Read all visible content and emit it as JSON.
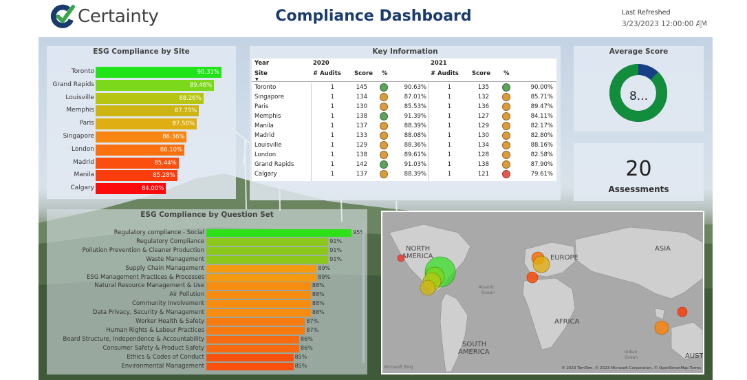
{
  "header": {
    "logo_text": "Certainty",
    "title": "Compliance Dashboard",
    "refresh_label": "Last Refreshed",
    "refresh_value": "3/23/2023 12:00:00 AM"
  },
  "site_chart": {
    "title": "ESG Compliance by Site",
    "type": "bar",
    "sites": [
      {
        "name": "Toronto",
        "value": 90.31,
        "label": "90.31%",
        "color": "#21e319"
      },
      {
        "name": "Grand Rapids",
        "value": 89.46,
        "label": "89.46%",
        "color": "#7bd81a"
      },
      {
        "name": "Louisville",
        "value": 88.26,
        "label": "88.26%",
        "color": "#b6c512"
      },
      {
        "name": "Memphis",
        "value": 87.75,
        "label": "87.75%",
        "color": "#ccb512"
      },
      {
        "name": "Paris",
        "value": 87.5,
        "label": "87.50%",
        "color": "#deae12"
      },
      {
        "name": "Singapore",
        "value": 86.36,
        "label": "86.36%",
        "color": "#f78511"
      },
      {
        "name": "London",
        "value": 86.1,
        "label": "86.10%",
        "color": "#fa700f"
      },
      {
        "name": "Madrid",
        "value": 85.44,
        "label": "85.44%",
        "color": "#fa4f0e"
      },
      {
        "name": "Manila",
        "value": 85.28,
        "label": "85.28%",
        "color": "#fb3d0d"
      },
      {
        "name": "Calgary",
        "value": 84.0,
        "label": "84.00%",
        "color": "#fb0b0b"
      }
    ]
  },
  "key_info": {
    "title": "Key Information",
    "year_label": "Year",
    "site_label": "Site",
    "years": [
      "2020",
      "2021"
    ],
    "columns": [
      "# Audits",
      "Score",
      "%"
    ],
    "rows": [
      {
        "site": "Toronto",
        "a1": "1",
        "s1": "145",
        "c1": "#5ca45c",
        "p1": "90.63%",
        "a2": "1",
        "s2": "135",
        "c2": "#5ca45c",
        "p2": "90.00%"
      },
      {
        "site": "Singapore",
        "a1": "1",
        "s1": "134",
        "c1": "#de9b3a",
        "p1": "87.01%",
        "a2": "1",
        "s2": "132",
        "c2": "#de9b3a",
        "p2": "85.71%"
      },
      {
        "site": "Paris",
        "a1": "1",
        "s1": "130",
        "c1": "#de9b3a",
        "p1": "85.53%",
        "a2": "1",
        "s2": "136",
        "c2": "#de9b3a",
        "p2": "89.47%"
      },
      {
        "site": "Memphis",
        "a1": "1",
        "s1": "138",
        "c1": "#5ca45c",
        "p1": "91.39%",
        "a2": "1",
        "s2": "127",
        "c2": "#de9b3a",
        "p2": "84.11%"
      },
      {
        "site": "Manila",
        "a1": "1",
        "s1": "137",
        "c1": "#de9b3a",
        "p1": "88.39%",
        "a2": "1",
        "s2": "129",
        "c2": "#de9b3a",
        "p2": "82.17%"
      },
      {
        "site": "Madrid",
        "a1": "1",
        "s1": "133",
        "c1": "#de9b3a",
        "p1": "88.08%",
        "a2": "1",
        "s2": "130",
        "c2": "#de9b3a",
        "p2": "82.80%"
      },
      {
        "site": "Louisville",
        "a1": "1",
        "s1": "129",
        "c1": "#de9b3a",
        "p1": "88.36%",
        "a2": "1",
        "s2": "134",
        "c2": "#de9b3a",
        "p2": "88.16%"
      },
      {
        "site": "London",
        "a1": "1",
        "s1": "138",
        "c1": "#de9b3a",
        "p1": "89.61%",
        "a2": "1",
        "s2": "128",
        "c2": "#de9b3a",
        "p2": "82.58%"
      },
      {
        "site": "Grand Rapids",
        "a1": "1",
        "s1": "142",
        "c1": "#5ca45c",
        "p1": "91.03%",
        "a2": "1",
        "s2": "138",
        "c2": "#de9b3a",
        "p2": "87.90%"
      },
      {
        "site": "Calgary",
        "a1": "1",
        "s1": "137",
        "c1": "#de9b3a",
        "p1": "88.39%",
        "a2": "1",
        "s2": "121",
        "c2": "#e35a4f",
        "p2": "79.61%"
      }
    ]
  },
  "average_score": {
    "title": "Average Score",
    "display": "8...",
    "fraction": 0.88,
    "fill_color": "#118d3c",
    "rest_color": "#183f85"
  },
  "assessments": {
    "value": "20",
    "label": "Assessments"
  },
  "question_chart": {
    "title": "ESG Compliance by Question Set",
    "type": "bar",
    "items": [
      {
        "name": "Regulatory compliance - Social",
        "value": 95,
        "label": "95%",
        "color": "#2ee01a"
      },
      {
        "name": "Regulatory Compliance",
        "value": 91,
        "label": "91%",
        "color": "#8bc81b"
      },
      {
        "name": "Pollution Prevention & Cleaner Production",
        "value": 91,
        "label": "91%",
        "color": "#8bc81b"
      },
      {
        "name": "Waste Management",
        "value": 91,
        "label": "91%",
        "color": "#8bc81b"
      },
      {
        "name": "Supply Chain Management",
        "value": 89,
        "label": "89%",
        "color": "#f49a11"
      },
      {
        "name": "ESG Management Practices & Processes",
        "value": 89,
        "label": "89%",
        "color": "#f49a11"
      },
      {
        "name": "Natural Resource Management & Use",
        "value": 88,
        "label": "88%",
        "color": "#f68c10"
      },
      {
        "name": "Air Pollution",
        "value": 88,
        "label": "88%",
        "color": "#f68c10"
      },
      {
        "name": "Community Involvement",
        "value": 88,
        "label": "88%",
        "color": "#f68c10"
      },
      {
        "name": "Data Privacy, Security & Management",
        "value": 88,
        "label": "88%",
        "color": "#f68c10"
      },
      {
        "name": "Worker Health & Safety",
        "value": 87,
        "label": "87%",
        "color": "#f77a10"
      },
      {
        "name": "Human Rights & Labour Practices",
        "value": 87,
        "label": "87%",
        "color": "#f77a10"
      },
      {
        "name": "Board Structure, Independence & Accountability",
        "value": 86,
        "label": "86%",
        "color": "#f86a0f"
      },
      {
        "name": "Consumer Safety & Product Safety",
        "value": 86,
        "label": "86%",
        "color": "#f86a0f"
      },
      {
        "name": "Ethics & Codes of Conduct",
        "value": 85,
        "label": "85%",
        "color": "#f9520e"
      },
      {
        "name": "Environmental Management",
        "value": 85,
        "label": "85%",
        "color": "#f9520e"
      }
    ]
  },
  "map": {
    "labels": {
      "north_america_1": "NORTH",
      "north_america_2": "AMERICA",
      "europe": "EUROPE",
      "asia": "ASIA",
      "africa": "AFRICA",
      "south_america_1": "SOUTH",
      "south_america_2": "AMERICA",
      "australia": "AUST",
      "atlantic_1": "Atlantic",
      "atlantic_2": "Ocean",
      "indian_1": "Indian",
      "indian_2": "Ocean"
    },
    "attribution": "© 2023 TomTom, © 2023 Microsoft Corporation, © OpenStreetMap  Terms",
    "provider": "Microsoft Bing"
  }
}
